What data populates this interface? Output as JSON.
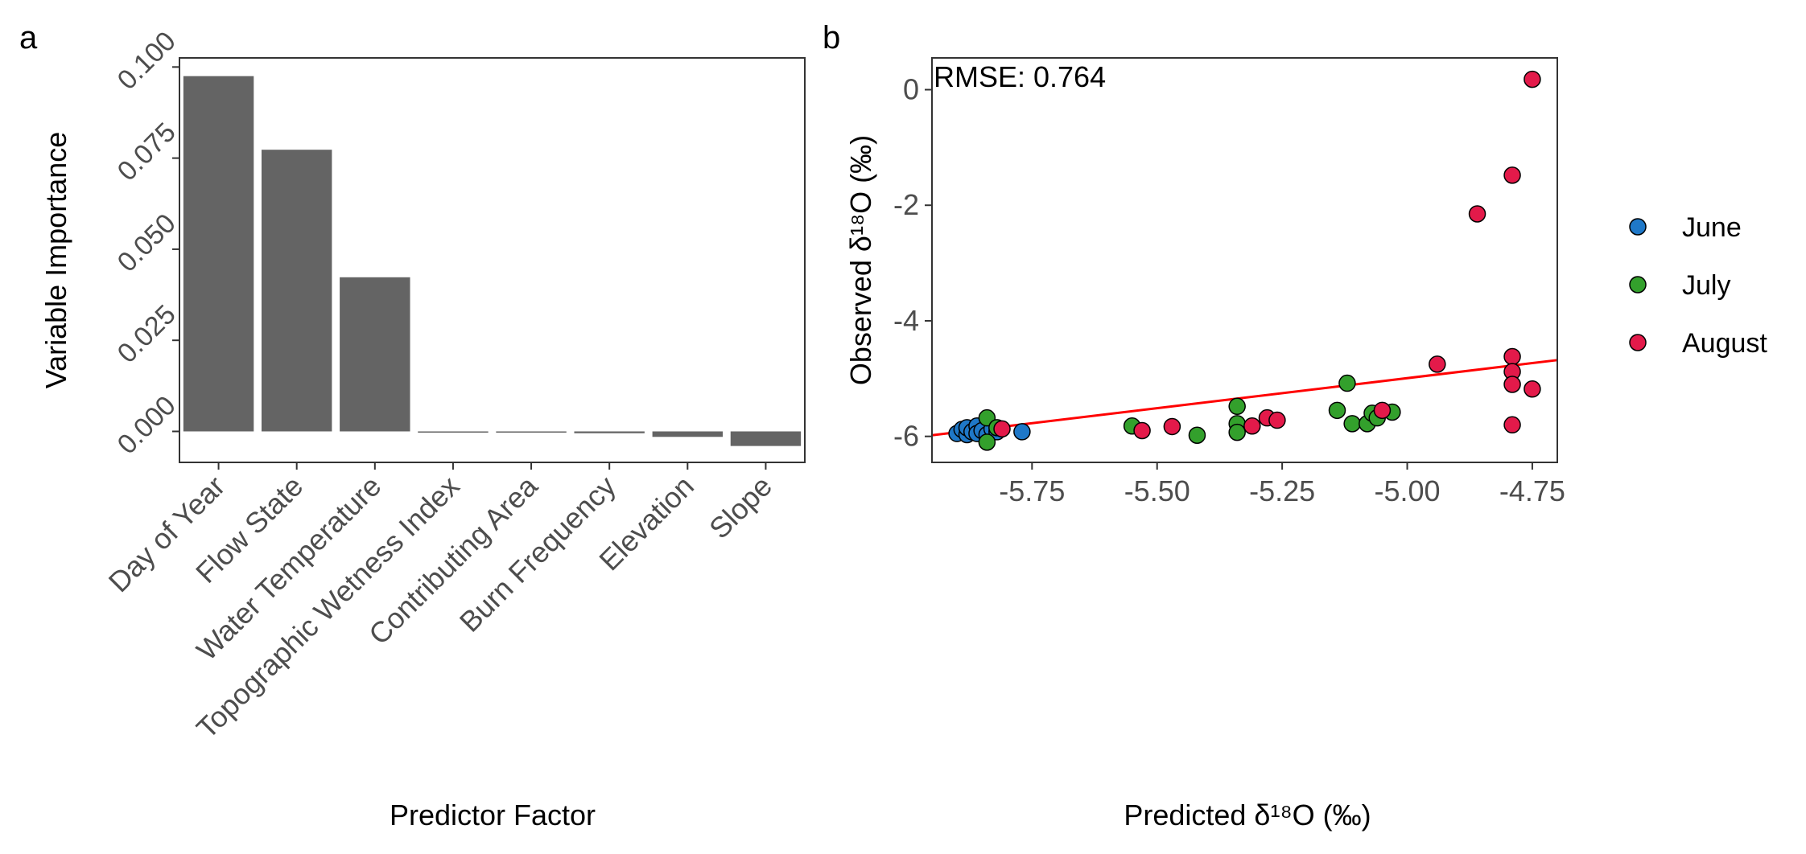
{
  "chart_data": [
    {
      "panel_label": "a",
      "type": "bar",
      "title": "",
      "xlabel": "Predictor Factor",
      "ylabel": "Variable Importance",
      "categories": [
        "Day of Year",
        "Flow State",
        "Water Temperature",
        "Topographic Wetness Index",
        "Contributing Area",
        "Burn Frequency",
        "Elevation",
        "Slope"
      ],
      "values": [
        0.0975,
        0.0773,
        0.0423,
        -0.0002,
        0.0,
        -0.0005,
        -0.0015,
        -0.004
      ],
      "yticks": [
        0.0,
        0.025,
        0.05,
        0.075,
        0.1
      ],
      "ytick_labels": [
        "0.000",
        "0.025",
        "0.050",
        "0.075",
        "0.100"
      ],
      "ylim": [
        -0.0085,
        0.1025
      ],
      "bar_color": "#646464",
      "grid": false
    },
    {
      "panel_label": "b",
      "type": "scatter",
      "title": "",
      "xlabel": "Predicted δ¹⁸O (‰)",
      "ylabel": "Observed δ¹⁸O (‰)",
      "annotation": "RMSE: 0.764",
      "xticks": [
        -5.75,
        -5.5,
        -5.25,
        -5.0,
        -4.75
      ],
      "xtick_labels": [
        "-5.75",
        "-5.50",
        "-5.25",
        "-5.00",
        "-4.75"
      ],
      "yticks": [
        0,
        -2,
        -4,
        -6
      ],
      "ytick_labels": [
        "0",
        "-2",
        "-4",
        "-6"
      ],
      "xlim": [
        -5.95,
        -4.7
      ],
      "ylim": [
        -6.45,
        0.55
      ],
      "fit_line": {
        "color": "#ff0000",
        "x": [
          -5.95,
          -4.7
        ],
        "y": [
          -5.98,
          -4.68
        ]
      },
      "legend": {
        "position": "right"
      },
      "series": [
        {
          "name": "June",
          "color": "#1f78c8",
          "points": [
            [
              -5.9,
              -5.95
            ],
            [
              -5.89,
              -5.88
            ],
            [
              -5.88,
              -5.97
            ],
            [
              -5.88,
              -5.85
            ],
            [
              -5.87,
              -5.92
            ],
            [
              -5.86,
              -5.82
            ],
            [
              -5.86,
              -5.95
            ],
            [
              -5.85,
              -5.9
            ],
            [
              -5.84,
              -5.97
            ],
            [
              -5.83,
              -5.87
            ],
            [
              -5.82,
              -5.92
            ],
            [
              -5.77,
              -5.92
            ]
          ]
        },
        {
          "name": "July",
          "color": "#33a02c",
          "points": [
            [
              -5.84,
              -5.68
            ],
            [
              -5.84,
              -6.1
            ],
            [
              -5.82,
              -5.85
            ],
            [
              -5.55,
              -5.82
            ],
            [
              -5.42,
              -5.98
            ],
            [
              -5.34,
              -5.48
            ],
            [
              -5.34,
              -5.78
            ],
            [
              -5.34,
              -5.93
            ],
            [
              -5.14,
              -5.55
            ],
            [
              -5.12,
              -5.08
            ],
            [
              -5.11,
              -5.78
            ],
            [
              -5.08,
              -5.78
            ],
            [
              -5.07,
              -5.6
            ],
            [
              -5.06,
              -5.68
            ],
            [
              -5.03,
              -5.58
            ]
          ]
        },
        {
          "name": "August",
          "color": "#e31a4a",
          "points": [
            [
              -5.81,
              -5.87
            ],
            [
              -5.53,
              -5.9
            ],
            [
              -5.47,
              -5.83
            ],
            [
              -5.31,
              -5.82
            ],
            [
              -5.28,
              -5.68
            ],
            [
              -5.26,
              -5.72
            ],
            [
              -5.05,
              -5.55
            ],
            [
              -4.94,
              -4.75
            ],
            [
              -4.86,
              -2.15
            ],
            [
              -4.79,
              -1.48
            ],
            [
              -4.79,
              -4.62
            ],
            [
              -4.79,
              -4.88
            ],
            [
              -4.79,
              -5.1
            ],
            [
              -4.79,
              -5.8
            ],
            [
              -4.75,
              0.18
            ],
            [
              -4.75,
              -5.18
            ]
          ]
        }
      ]
    }
  ]
}
